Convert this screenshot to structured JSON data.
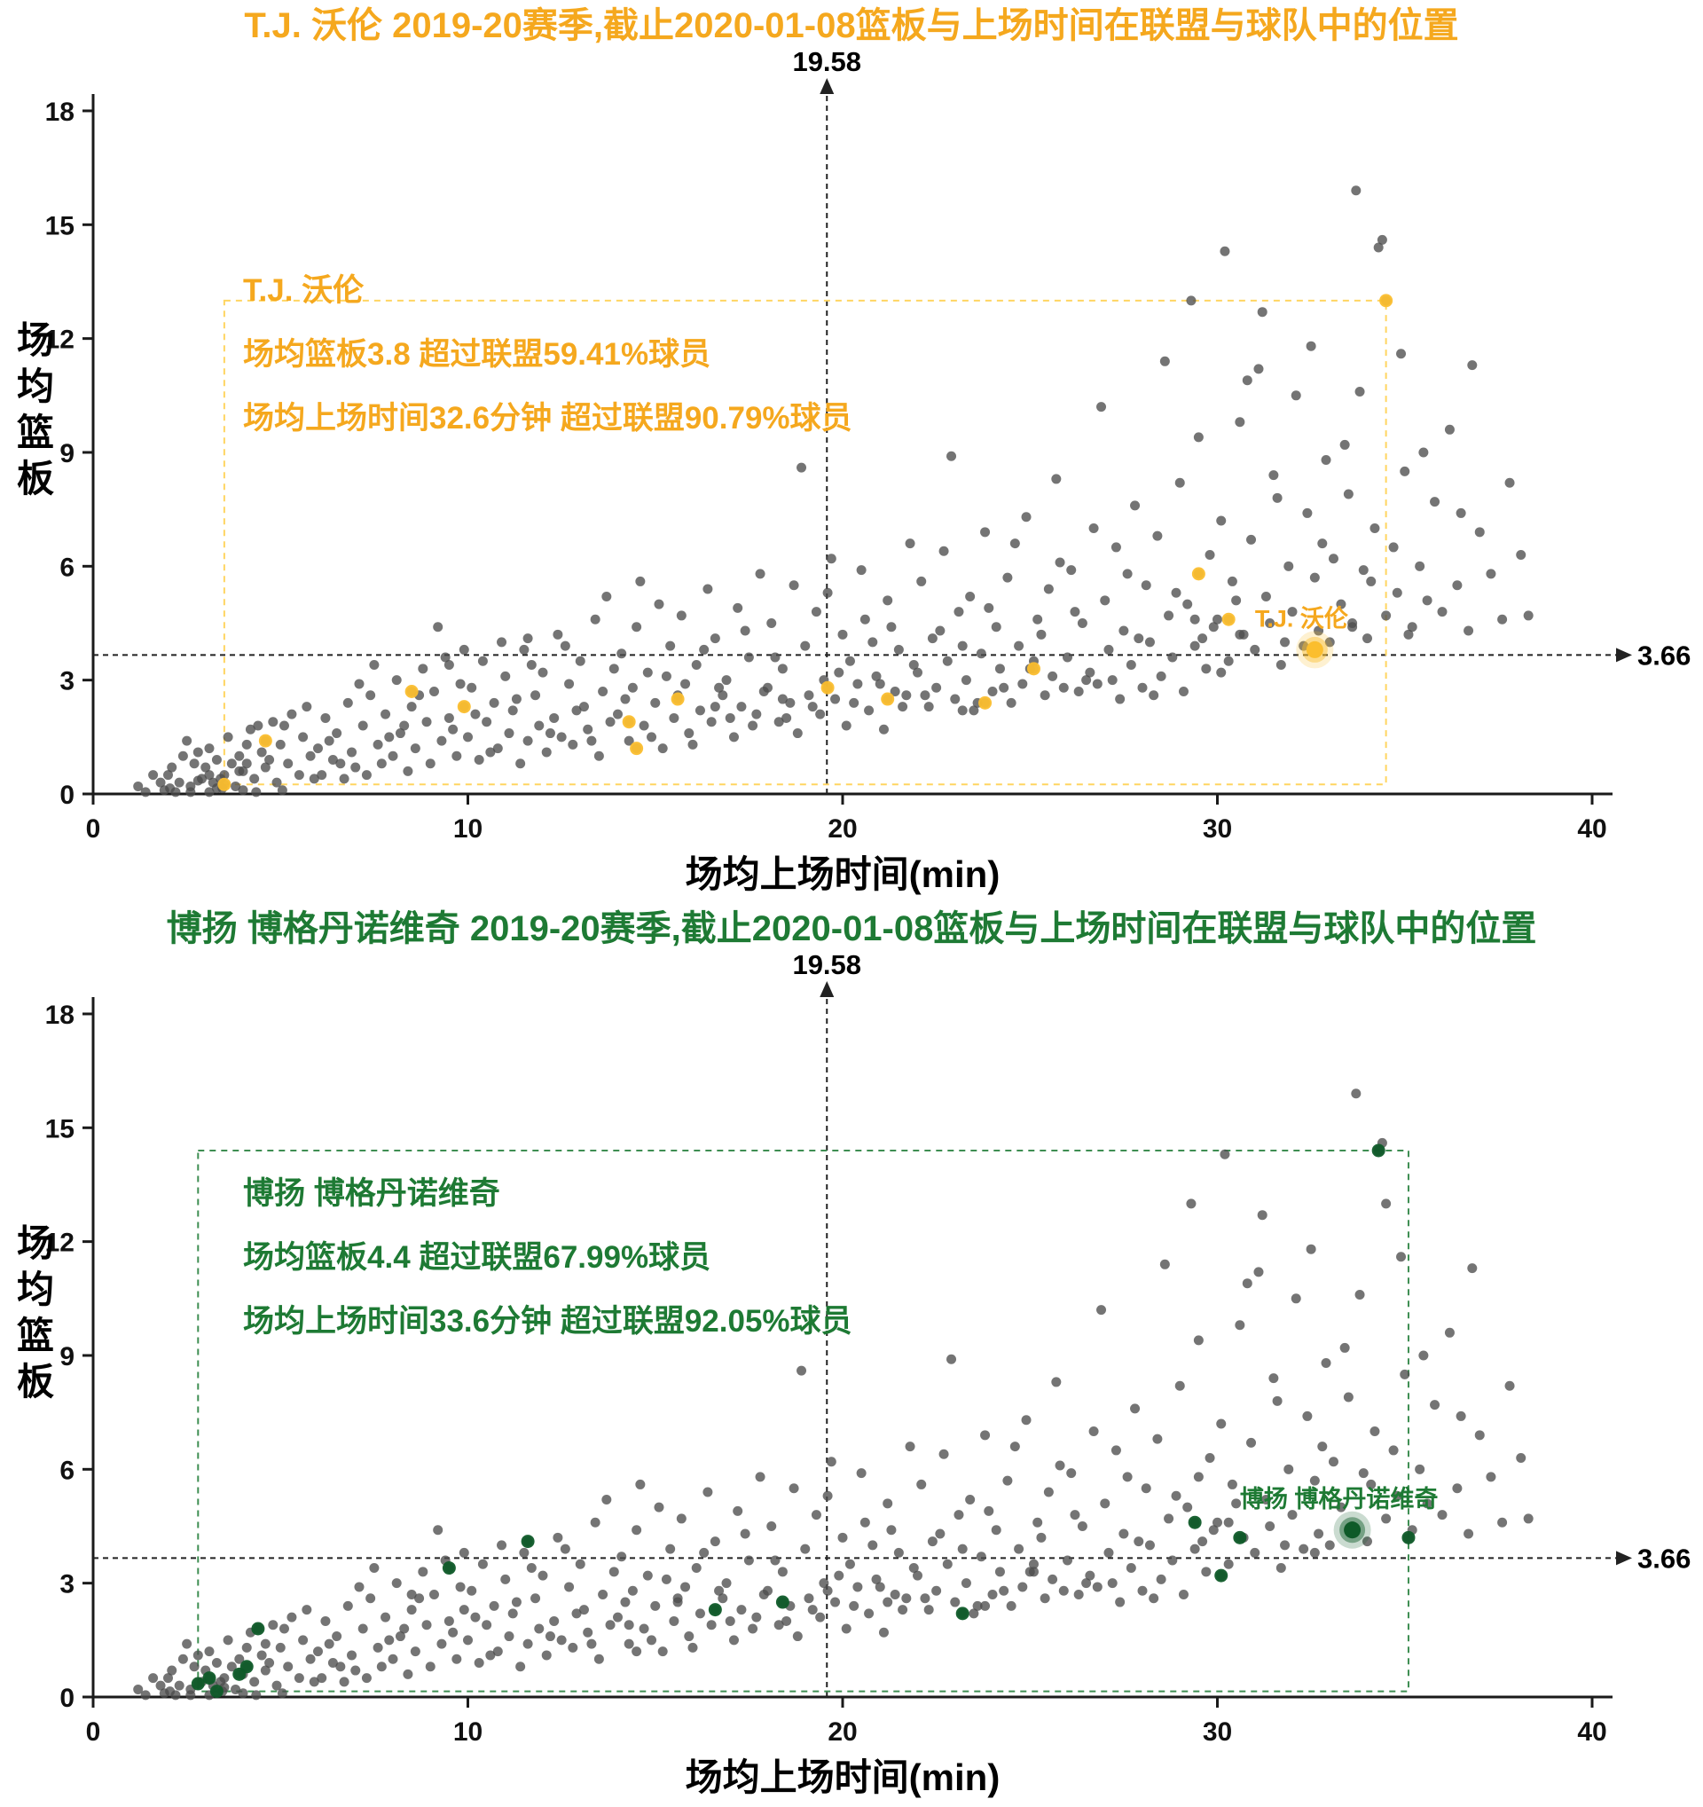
{
  "colors": {
    "background": "#ffffff",
    "axis": "#1a1a1a",
    "mean_line": "#222222",
    "league_point": "#4d4d4d",
    "tick_text": "#111111"
  },
  "chart_data": [
    {
      "type": "scatter",
      "title": "T.J. 沃伦 2019-20赛季,截止2020-01-08篮板与上场时间在联盟与球队中的位置",
      "accent": "#F5A81E",
      "point_color": "#FBBE2E",
      "box_color": "#FFD561",
      "xlabel": "场均上场时间(min)",
      "ylabel": "场均篮板",
      "xticks": [
        0,
        10,
        20,
        30,
        40
      ],
      "yticks": [
        0,
        3,
        6,
        9,
        12,
        15,
        18
      ],
      "xlim": [
        0,
        41
      ],
      "ylim": [
        0,
        18.6
      ],
      "mean_minutes": 19.58,
      "mean_rebounds": 3.66,
      "annotation_lines": [
        "T.J. 沃伦",
        "场均篮板3.8 超过联盟59.41%球员",
        "场均上场时间32.6分钟 超过联盟90.79%球员"
      ],
      "player": {
        "label": "T.J. 沃伦",
        "minutes": 32.6,
        "rebounds": 3.8
      },
      "team_points": [
        [
          3.5,
          0.25
        ],
        [
          4.6,
          1.4
        ],
        [
          8.5,
          2.7
        ],
        [
          9.9,
          2.3
        ],
        [
          14.3,
          1.9
        ],
        [
          14.5,
          1.2
        ],
        [
          15.6,
          2.5
        ],
        [
          19.6,
          2.8
        ],
        [
          21.2,
          2.5
        ],
        [
          23.8,
          2.4
        ],
        [
          25.1,
          3.3
        ],
        [
          29.5,
          5.8
        ],
        [
          30.3,
          4.6
        ],
        [
          34.5,
          13.0
        ]
      ]
    },
    {
      "type": "scatter",
      "title": "博扬 博格丹诺维奇 2019-20赛季,截止2020-01-08篮板与上场时间在联盟与球队中的位置",
      "accent": "#1E7A34",
      "point_color": "#0E5A28",
      "box_color": "#3E8E52",
      "xlabel": "场均上场时间(min)",
      "ylabel": "场均篮板",
      "xticks": [
        0,
        10,
        20,
        30,
        40
      ],
      "yticks": [
        0,
        3,
        6,
        9,
        12,
        15,
        18
      ],
      "xlim": [
        0,
        41
      ],
      "ylim": [
        0,
        18.6
      ],
      "mean_minutes": 19.58,
      "mean_rebounds": 3.66,
      "annotation_lines": [
        "博扬 博格丹诺维奇",
        "场均篮板4.4 超过联盟67.99%球员",
        "场均上场时间33.6分钟 超过联盟92.05%球员"
      ],
      "player": {
        "label": "博扬 博格丹诺维奇",
        "minutes": 33.6,
        "rebounds": 4.4
      },
      "team_points": [
        [
          2.8,
          0.35
        ],
        [
          3.1,
          0.5
        ],
        [
          3.3,
          0.15
        ],
        [
          3.9,
          0.6
        ],
        [
          4.1,
          0.8
        ],
        [
          4.4,
          1.8
        ],
        [
          9.5,
          3.4
        ],
        [
          11.6,
          4.1
        ],
        [
          16.6,
          2.3
        ],
        [
          18.4,
          2.5
        ],
        [
          23.2,
          2.2
        ],
        [
          29.4,
          4.6
        ],
        [
          30.1,
          3.2
        ],
        [
          30.6,
          4.2
        ],
        [
          34.3,
          14.4
        ],
        [
          35.1,
          4.2
        ]
      ]
    }
  ],
  "league_points": [
    [
      1.2,
      0.2
    ],
    [
      1.6,
      0.5
    ],
    [
      1.9,
      0.1
    ],
    [
      2.1,
      0.7
    ],
    [
      2.3,
      0.3
    ],
    [
      2.4,
      1.0
    ],
    [
      2.6,
      0.2
    ],
    [
      2.7,
      0.8
    ],
    [
      2.9,
      0.4
    ],
    [
      3.1,
      1.2
    ],
    [
      3.2,
      0.3
    ],
    [
      3.3,
      0.9
    ],
    [
      3.5,
      0.5
    ],
    [
      3.6,
      1.5
    ],
    [
      3.8,
      0.2
    ],
    [
      3.9,
      1.0
    ],
    [
      4.0,
      0.6
    ],
    [
      4.2,
      1.7
    ],
    [
      4.3,
      0.4
    ],
    [
      4.5,
      1.1
    ],
    [
      4.6,
      0.7
    ],
    [
      4.8,
      1.9
    ],
    [
      4.9,
      0.3
    ],
    [
      5.0,
      1.3
    ],
    [
      5.2,
      0.8
    ],
    [
      5.3,
      2.1
    ],
    [
      5.5,
      0.5
    ],
    [
      5.6,
      1.5
    ],
    [
      5.8,
      1.0
    ],
    [
      5.9,
      0.4
    ],
    [
      2.0,
      0.5
    ],
    [
      2.5,
      1.4
    ],
    [
      3.0,
      0.7
    ],
    [
      3.4,
      0.4
    ],
    [
      4.1,
      1.3
    ],
    [
      4.7,
      0.9
    ],
    [
      5.1,
      1.8
    ],
    [
      5.7,
      2.3
    ],
    [
      2.8,
      1.1
    ],
    [
      3.7,
      0.8
    ],
    [
      1.4,
      0.05
    ],
    [
      2.2,
      0.05
    ],
    [
      2.6,
      0.05
    ],
    [
      3.1,
      0.05
    ],
    [
      1.8,
      0.3
    ],
    [
      2.05,
      0.15
    ],
    [
      3.45,
      0.15
    ],
    [
      4.0,
      0.1
    ],
    [
      4.35,
      0.05
    ],
    [
      5.05,
      0.1
    ],
    [
      6.0,
      1.2
    ],
    [
      6.1,
      0.5
    ],
    [
      6.2,
      2.0
    ],
    [
      6.4,
      0.9
    ],
    [
      6.5,
      1.6
    ],
    [
      6.7,
      0.4
    ],
    [
      6.8,
      2.4
    ],
    [
      6.9,
      1.1
    ],
    [
      7.0,
      0.7
    ],
    [
      7.2,
      1.8
    ],
    [
      7.3,
      0.5
    ],
    [
      7.4,
      2.6
    ],
    [
      7.6,
      1.3
    ],
    [
      7.7,
      0.8
    ],
    [
      7.8,
      2.1
    ],
    [
      8.0,
      1.0
    ],
    [
      8.1,
      3.0
    ],
    [
      8.2,
      1.6
    ],
    [
      8.4,
      0.6
    ],
    [
      8.5,
      2.3
    ],
    [
      8.6,
      1.2
    ],
    [
      8.8,
      3.3
    ],
    [
      8.9,
      1.9
    ],
    [
      9.0,
      0.8
    ],
    [
      9.1,
      2.7
    ],
    [
      9.3,
      1.4
    ],
    [
      9.4,
      3.6
    ],
    [
      9.5,
      2.0
    ],
    [
      9.7,
      1.0
    ],
    [
      9.8,
      2.9
    ],
    [
      6.3,
      1.4
    ],
    [
      7.1,
      2.9
    ],
    [
      7.9,
      1.5
    ],
    [
      8.7,
      2.6
    ],
    [
      9.2,
      4.4
    ],
    [
      9.6,
      1.7
    ],
    [
      6.6,
      0.8
    ],
    [
      7.5,
      3.4
    ],
    [
      8.3,
      1.8
    ],
    [
      9.9,
      3.8
    ],
    [
      10.0,
      1.5
    ],
    [
      10.1,
      2.8
    ],
    [
      10.3,
      0.9
    ],
    [
      10.4,
      3.5
    ],
    [
      10.5,
      1.9
    ],
    [
      10.7,
      2.4
    ],
    [
      10.8,
      1.2
    ],
    [
      11.0,
      3.1
    ],
    [
      11.1,
      1.6
    ],
    [
      11.2,
      2.2
    ],
    [
      11.4,
      0.8
    ],
    [
      11.5,
      3.8
    ],
    [
      11.6,
      1.4
    ],
    [
      11.8,
      2.6
    ],
    [
      11.9,
      1.8
    ],
    [
      12.0,
      3.2
    ],
    [
      12.1,
      1.1
    ],
    [
      12.3,
      2.0
    ],
    [
      12.4,
      4.2
    ],
    [
      12.5,
      1.5
    ],
    [
      12.7,
      2.9
    ],
    [
      12.8,
      1.3
    ],
    [
      13.0,
      3.5
    ],
    [
      13.1,
      2.3
    ],
    [
      13.2,
      1.7
    ],
    [
      13.4,
      4.6
    ],
    [
      13.5,
      1.0
    ],
    [
      13.6,
      2.7
    ],
    [
      13.8,
      1.9
    ],
    [
      13.9,
      3.3
    ],
    [
      10.2,
      2.1
    ],
    [
      10.9,
      4.0
    ],
    [
      11.3,
      2.5
    ],
    [
      12.2,
      1.6
    ],
    [
      12.9,
      2.2
    ],
    [
      13.3,
      1.4
    ],
    [
      13.7,
      5.2
    ],
    [
      10.6,
      1.1
    ],
    [
      11.7,
      3.4
    ],
    [
      12.6,
      3.9
    ],
    [
      14.0,
      2.1
    ],
    [
      14.1,
      3.7
    ],
    [
      14.3,
      1.4
    ],
    [
      14.4,
      2.8
    ],
    [
      14.5,
      4.4
    ],
    [
      14.7,
      1.8
    ],
    [
      14.8,
      3.2
    ],
    [
      15.0,
      2.4
    ],
    [
      15.1,
      5.0
    ],
    [
      15.2,
      1.2
    ],
    [
      15.4,
      3.9
    ],
    [
      15.5,
      2.0
    ],
    [
      15.7,
      4.7
    ],
    [
      15.8,
      2.9
    ],
    [
      15.9,
      1.6
    ],
    [
      16.1,
      3.4
    ],
    [
      16.2,
      2.2
    ],
    [
      16.4,
      5.4
    ],
    [
      16.5,
      1.9
    ],
    [
      16.6,
      4.1
    ],
    [
      16.8,
      2.6
    ],
    [
      16.9,
      3.0
    ],
    [
      17.1,
      1.5
    ],
    [
      17.2,
      4.9
    ],
    [
      17.3,
      2.3
    ],
    [
      17.5,
      3.6
    ],
    [
      17.6,
      1.8
    ],
    [
      17.8,
      5.8
    ],
    [
      17.9,
      2.7
    ],
    [
      14.9,
      1.5
    ],
    [
      14.2,
      2.5
    ],
    [
      15.3,
      3.1
    ],
    [
      16.0,
      1.3
    ],
    [
      16.7,
      2.8
    ],
    [
      17.4,
      4.3
    ],
    [
      17.7,
      2.1
    ],
    [
      14.6,
      5.6
    ],
    [
      15.6,
      2.6
    ],
    [
      16.3,
      3.8
    ],
    [
      17.0,
      2.0
    ],
    [
      18.0,
      2.8
    ],
    [
      18.1,
      4.5
    ],
    [
      18.3,
      1.9
    ],
    [
      18.4,
      3.3
    ],
    [
      18.6,
      2.4
    ],
    [
      18.7,
      5.5
    ],
    [
      18.8,
      1.6
    ],
    [
      19.0,
      3.9
    ],
    [
      19.1,
      2.6
    ],
    [
      19.3,
      4.8
    ],
    [
      19.4,
      2.1
    ],
    [
      19.5,
      3.0
    ],
    [
      19.7,
      6.2
    ],
    [
      19.8,
      2.5
    ],
    [
      20.0,
      4.2
    ],
    [
      20.1,
      1.8
    ],
    [
      20.2,
      3.5
    ],
    [
      20.4,
      2.9
    ],
    [
      20.5,
      5.9
    ],
    [
      20.7,
      2.2
    ],
    [
      20.8,
      4.0
    ],
    [
      20.9,
      3.1
    ],
    [
      21.1,
      1.7
    ],
    [
      21.2,
      5.1
    ],
    [
      21.4,
      2.7
    ],
    [
      21.5,
      3.8
    ],
    [
      21.6,
      2.3
    ],
    [
      21.8,
      6.6
    ],
    [
      21.9,
      3.4
    ],
    [
      18.5,
      2.0
    ],
    [
      18.2,
      3.6
    ],
    [
      18.9,
      8.6
    ],
    [
      19.2,
      2.3
    ],
    [
      19.6,
      5.3
    ],
    [
      19.9,
      3.2
    ],
    [
      20.3,
      2.4
    ],
    [
      20.6,
      4.6
    ],
    [
      21.0,
      2.9
    ],
    [
      21.3,
      4.4
    ],
    [
      21.7,
      2.6
    ],
    [
      22.0,
      3.2
    ],
    [
      22.1,
      5.6
    ],
    [
      22.3,
      2.3
    ],
    [
      22.4,
      4.1
    ],
    [
      22.5,
      2.8
    ],
    [
      22.7,
      6.4
    ],
    [
      22.8,
      3.5
    ],
    [
      23.0,
      2.5
    ],
    [
      23.1,
      4.8
    ],
    [
      23.3,
      3.0
    ],
    [
      23.4,
      5.2
    ],
    [
      23.5,
      2.2
    ],
    [
      23.7,
      3.7
    ],
    [
      23.8,
      6.9
    ],
    [
      24.0,
      2.7
    ],
    [
      24.1,
      4.4
    ],
    [
      24.2,
      3.3
    ],
    [
      24.4,
      5.7
    ],
    [
      24.5,
      2.4
    ],
    [
      24.7,
      3.9
    ],
    [
      24.8,
      2.9
    ],
    [
      24.9,
      7.3
    ],
    [
      25.1,
      3.5
    ],
    [
      25.2,
      4.6
    ],
    [
      25.4,
      2.6
    ],
    [
      25.5,
      5.4
    ],
    [
      25.6,
      3.1
    ],
    [
      25.8,
      6.1
    ],
    [
      25.9,
      2.8
    ],
    [
      22.6,
      4.3
    ],
    [
      22.2,
      2.6
    ],
    [
      22.9,
      8.9
    ],
    [
      23.2,
      3.9
    ],
    [
      23.6,
      2.4
    ],
    [
      23.9,
      4.9
    ],
    [
      24.3,
      2.8
    ],
    [
      24.6,
      6.6
    ],
    [
      25.0,
      3.3
    ],
    [
      25.3,
      4.2
    ],
    [
      25.7,
      8.3
    ],
    [
      26.0,
      3.6
    ],
    [
      26.1,
      5.9
    ],
    [
      26.3,
      2.7
    ],
    [
      26.4,
      4.5
    ],
    [
      26.6,
      3.2
    ],
    [
      26.7,
      7.0
    ],
    [
      26.8,
      2.9
    ],
    [
      27.0,
      5.1
    ],
    [
      27.1,
      3.8
    ],
    [
      27.3,
      6.5
    ],
    [
      27.4,
      2.5
    ],
    [
      27.5,
      4.3
    ],
    [
      27.7,
      3.4
    ],
    [
      27.8,
      7.6
    ],
    [
      28.0,
      2.8
    ],
    [
      28.1,
      5.5
    ],
    [
      28.2,
      4.0
    ],
    [
      28.4,
      6.8
    ],
    [
      28.5,
      3.1
    ],
    [
      28.7,
      4.7
    ],
    [
      28.8,
      3.6
    ],
    [
      29.0,
      8.2
    ],
    [
      29.1,
      2.7
    ],
    [
      29.2,
      5.0
    ],
    [
      29.4,
      3.9
    ],
    [
      29.5,
      9.4
    ],
    [
      29.7,
      3.3
    ],
    [
      29.8,
      6.3
    ],
    [
      29.9,
      4.4
    ],
    [
      26.5,
      3.0
    ],
    [
      26.2,
      4.8
    ],
    [
      26.9,
      10.2
    ],
    [
      27.2,
      3.0
    ],
    [
      27.6,
      5.8
    ],
    [
      27.9,
      4.1
    ],
    [
      28.3,
      2.6
    ],
    [
      28.6,
      11.4
    ],
    [
      28.9,
      5.3
    ],
    [
      29.3,
      13.0
    ],
    [
      29.6,
      4.1
    ],
    [
      30.0,
      4.6
    ],
    [
      30.1,
      7.2
    ],
    [
      30.3,
      3.5
    ],
    [
      30.4,
      5.6
    ],
    [
      30.6,
      9.8
    ],
    [
      30.7,
      4.2
    ],
    [
      30.9,
      6.7
    ],
    [
      31.0,
      3.8
    ],
    [
      31.1,
      11.2
    ],
    [
      31.3,
      5.2
    ],
    [
      31.4,
      4.5
    ],
    [
      31.6,
      7.8
    ],
    [
      31.7,
      3.4
    ],
    [
      31.9,
      6.0
    ],
    [
      32.0,
      4.8
    ],
    [
      32.1,
      10.5
    ],
    [
      32.3,
      3.9
    ],
    [
      32.4,
      7.4
    ],
    [
      32.6,
      5.7
    ],
    [
      32.7,
      4.3
    ],
    [
      32.9,
      8.8
    ],
    [
      33.0,
      4.0
    ],
    [
      33.1,
      6.2
    ],
    [
      33.3,
      5.0
    ],
    [
      33.4,
      9.2
    ],
    [
      33.6,
      4.5
    ],
    [
      33.7,
      15.9
    ],
    [
      33.9,
      5.9
    ],
    [
      34.0,
      4.1
    ],
    [
      34.2,
      7.0
    ],
    [
      34.4,
      14.6
    ],
    [
      34.5,
      4.7
    ],
    [
      34.7,
      6.5
    ],
    [
      34.8,
      5.3
    ],
    [
      35.0,
      8.5
    ],
    [
      35.2,
      4.4
    ],
    [
      35.4,
      6.0
    ],
    [
      35.6,
      5.1
    ],
    [
      35.8,
      7.7
    ],
    [
      36.0,
      4.8
    ],
    [
      36.2,
      9.6
    ],
    [
      36.4,
      5.5
    ],
    [
      36.7,
      4.3
    ],
    [
      37.0,
      6.9
    ],
    [
      37.3,
      5.8
    ],
    [
      37.6,
      4.6
    ],
    [
      30.2,
      14.3
    ],
    [
      31.2,
      12.7
    ],
    [
      30.8,
      10.9
    ],
    [
      32.5,
      11.8
    ],
    [
      30.5,
      5.1
    ],
    [
      31.8,
      4.0
    ],
    [
      33.8,
      10.6
    ],
    [
      34.1,
      5.6
    ],
    [
      35.5,
      9.0
    ],
    [
      36.5,
      7.4
    ],
    [
      31.5,
      8.4
    ],
    [
      32.8,
      6.6
    ],
    [
      34.9,
      11.6
    ],
    [
      33.5,
      7.9
    ],
    [
      38.1,
      6.3
    ],
    [
      38.3,
      4.7
    ],
    [
      37.8,
      8.2
    ],
    [
      36.8,
      11.3
    ]
  ]
}
